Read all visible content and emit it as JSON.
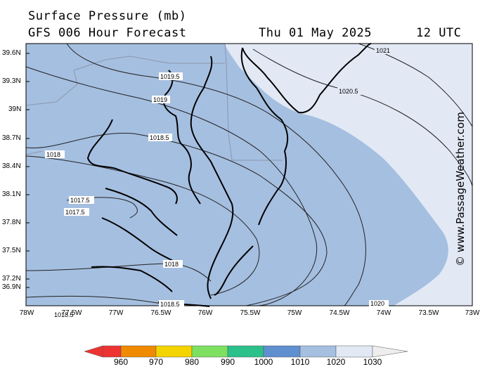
{
  "header": {
    "title": "Surface Pressure (mb)",
    "subtitle": "GFS 006 Hour Forecast",
    "date": "Thu 01 May 2025",
    "time": "12 UTC"
  },
  "credit": "© www.PassageWeather.com",
  "axes": {
    "lat_labels": [
      "39.6N",
      "39.3N",
      "39N",
      "38.7N",
      "38.4N",
      "38.1N",
      "37.8N",
      "37.5N",
      "37.2N",
      "36.9N"
    ],
    "lon_labels": [
      "78W",
      "77.5W",
      "77W",
      "76.5W",
      "76W",
      "75.5W",
      "75W",
      "74.5W",
      "74W",
      "73.5W",
      "73W"
    ]
  },
  "isobar_labels": [
    "1021",
    "1020.5",
    "1019.5",
    "1019",
    "1018.5",
    "1018",
    "1017.5",
    "1017.5",
    "1018",
    "1018.5",
    "1018.5",
    "1020"
  ],
  "colorbar": {
    "labels": [
      "960",
      "970",
      "980",
      "990",
      "1000",
      "1010",
      "1020",
      "1030"
    ],
    "colors": [
      "#ee3333",
      "#f08a00",
      "#f4d400",
      "#7ee060",
      "#2cc08a",
      "#5f8fcf",
      "#a5bfe0",
      "#e2e9f5"
    ]
  },
  "colors": {
    "pressure_1010_1020": "#a5bfe0",
    "pressure_1020_1030": "#e2e9f5"
  }
}
